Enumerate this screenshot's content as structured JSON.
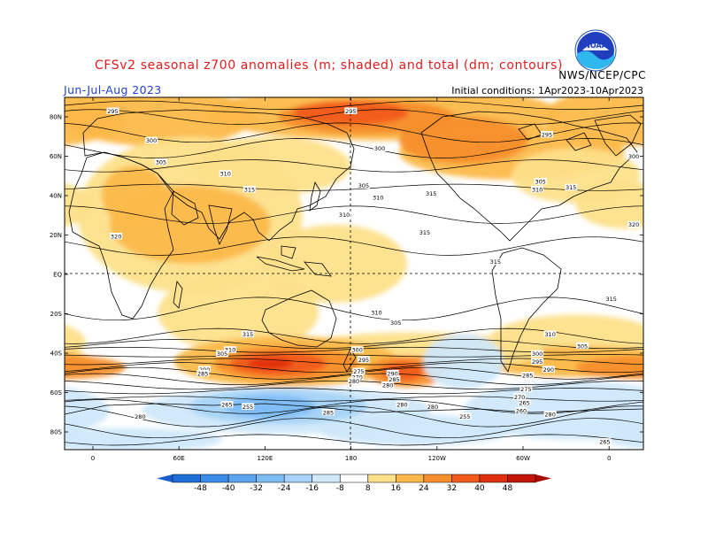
{
  "header": {
    "title": "CFSv2 seasonal z700 anomalies (m; shaded) and total (dm; contours)",
    "period": "Jun-Jul-Aug 2023",
    "init": "Initial conditions: 1Apr2023-10Apr2023",
    "source": "NWS/NCEP/CPC",
    "logo_text": "NOAA"
  },
  "map": {
    "lat_labels": [
      "80N",
      "60N",
      "40N",
      "20N",
      "EQ",
      "20S",
      "40S",
      "60S",
      "80S"
    ],
    "lon_labels": [
      "0",
      "60E",
      "120E",
      "180",
      "120W",
      "60W",
      "0"
    ],
    "contour_labels": [
      {
        "text": "295",
        "lon": 12,
        "lat": 83
      },
      {
        "text": "295",
        "lon": 160,
        "lat": 83
      },
      {
        "text": "295",
        "lon": 282,
        "lat": 71
      },
      {
        "text": "300",
        "lon": 36,
        "lat": 68
      },
      {
        "text": "300",
        "lon": 178,
        "lat": 64
      },
      {
        "text": "300",
        "lon": 336,
        "lat": 60
      },
      {
        "text": "305",
        "lon": 42,
        "lat": 57
      },
      {
        "text": "305",
        "lon": 168,
        "lat": 45
      },
      {
        "text": "305",
        "lon": 278,
        "lat": 47
      },
      {
        "text": "310",
        "lon": 82,
        "lat": 51
      },
      {
        "text": "310",
        "lon": 177,
        "lat": 39
      },
      {
        "text": "310",
        "lon": 276,
        "lat": 43
      },
      {
        "text": "315",
        "lon": 97,
        "lat": 43
      },
      {
        "text": "315",
        "lon": 210,
        "lat": 41
      },
      {
        "text": "315",
        "lon": 297,
        "lat": 44
      },
      {
        "text": "310",
        "lon": 156,
        "lat": 30
      },
      {
        "text": "320",
        "lon": 14,
        "lat": 19
      },
      {
        "text": "315",
        "lon": 206,
        "lat": 21
      },
      {
        "text": "320",
        "lon": 336,
        "lat": 25
      },
      {
        "text": "315",
        "lon": 250,
        "lat": 6
      },
      {
        "text": "310",
        "lon": 176,
        "lat": -20
      },
      {
        "text": "305",
        "lon": 188,
        "lat": -25
      },
      {
        "text": "315",
        "lon": 96,
        "lat": -31
      },
      {
        "text": "315",
        "lon": 322,
        "lat": -13
      },
      {
        "text": "310",
        "lon": 85,
        "lat": -39
      },
      {
        "text": "310",
        "lon": 284,
        "lat": -31
      },
      {
        "text": "305",
        "lon": 80,
        "lat": -41
      },
      {
        "text": "305",
        "lon": 304,
        "lat": -37
      },
      {
        "text": "300",
        "lon": 164,
        "lat": -39
      },
      {
        "text": "300",
        "lon": 276,
        "lat": -41
      },
      {
        "text": "295",
        "lon": 168,
        "lat": -44
      },
      {
        "text": "295",
        "lon": 276,
        "lat": -45
      },
      {
        "text": "290",
        "lon": 69,
        "lat": -49
      },
      {
        "text": "290",
        "lon": 186,
        "lat": -51
      },
      {
        "text": "290",
        "lon": 283,
        "lat": -49
      },
      {
        "text": "285",
        "lon": 68,
        "lat": -51
      },
      {
        "text": "285",
        "lon": 187,
        "lat": -54
      },
      {
        "text": "285",
        "lon": 270,
        "lat": -52
      },
      {
        "text": "275",
        "lon": 165,
        "lat": -50
      },
      {
        "text": "270",
        "lon": 164,
        "lat": -53
      },
      {
        "text": "280",
        "lon": 162,
        "lat": -55
      },
      {
        "text": "280",
        "lon": 183,
        "lat": -57
      },
      {
        "text": "275",
        "lon": 269,
        "lat": -59
      },
      {
        "text": "270",
        "lon": 265,
        "lat": -63
      },
      {
        "text": "265",
        "lon": 268,
        "lat": -66
      },
      {
        "text": "260",
        "lon": 266,
        "lat": -70
      },
      {
        "text": "280",
        "lon": 284,
        "lat": -72
      },
      {
        "text": "265",
        "lon": 83,
        "lat": -67
      },
      {
        "text": "255",
        "lon": 96,
        "lat": -68
      },
      {
        "text": "285",
        "lon": 146,
        "lat": -71
      },
      {
        "text": "280",
        "lon": 211,
        "lat": -68
      },
      {
        "text": "255",
        "lon": 231,
        "lat": -73
      },
      {
        "text": "280",
        "lon": 192,
        "lat": -67
      },
      {
        "text": "280",
        "lon": 29,
        "lat": -73
      },
      {
        "text": "265",
        "lon": 318,
        "lat": -86
      }
    ],
    "anomaly_blobs": [
      {
        "lon": 180,
        "lat": 82,
        "rx": 110,
        "ry": 14,
        "value": 16
      },
      {
        "lon": 170,
        "lat": 80,
        "rx": 55,
        "ry": 9,
        "value": 24
      },
      {
        "lon": 160,
        "lat": 82,
        "rx": 36,
        "ry": 6,
        "value": 32
      },
      {
        "lon": 40,
        "lat": 80,
        "rx": 60,
        "ry": 15,
        "value": 16
      },
      {
        "lon": 330,
        "lat": 80,
        "rx": 50,
        "ry": 15,
        "value": 16
      },
      {
        "lon": 260,
        "lat": 62,
        "rx": 70,
        "ry": 14,
        "value": 16
      },
      {
        "lon": 300,
        "lat": 50,
        "rx": 40,
        "ry": 14,
        "value": 8
      },
      {
        "lon": 230,
        "lat": 68,
        "rx": 40,
        "ry": 12,
        "value": 24
      },
      {
        "lon": 60,
        "lat": 30,
        "rx": 70,
        "ry": 40,
        "value": 8
      },
      {
        "lon": 60,
        "lat": 25,
        "rx": 50,
        "ry": 20,
        "value": 16
      },
      {
        "lon": 25,
        "lat": 40,
        "rx": 20,
        "ry": 15,
        "value": 16
      },
      {
        "lon": 110,
        "lat": 55,
        "rx": 50,
        "ry": 15,
        "value": 8
      },
      {
        "lon": 150,
        "lat": 5,
        "rx": 45,
        "ry": 20,
        "value": 8
      },
      {
        "lon": 90,
        "lat": -20,
        "rx": 50,
        "ry": 20,
        "value": 8
      },
      {
        "lon": 330,
        "lat": 35,
        "rx": 30,
        "ry": 12,
        "value": 8
      },
      {
        "lon": 300,
        "lat": -35,
        "rx": 55,
        "ry": 14,
        "value": 8
      },
      {
        "lon": 300,
        "lat": -45,
        "rx": 60,
        "ry": 8,
        "value": 16
      },
      {
        "lon": 200,
        "lat": -40,
        "rx": 80,
        "ry": 10,
        "value": 8
      },
      {
        "lon": 120,
        "lat": -45,
        "rx": 70,
        "ry": 13,
        "value": 16
      },
      {
        "lon": 120,
        "lat": -46,
        "rx": 45,
        "ry": 9,
        "value": 24
      },
      {
        "lon": 115,
        "lat": -46,
        "rx": 30,
        "ry": 6,
        "value": 32
      },
      {
        "lon": 110,
        "lat": -46,
        "rx": 14,
        "ry": 3,
        "value": 40
      },
      {
        "lon": 195,
        "lat": -50,
        "rx": 25,
        "ry": 8,
        "value": 24
      },
      {
        "lon": 192,
        "lat": -50,
        "rx": 13,
        "ry": 5,
        "value": 32
      },
      {
        "lon": 340,
        "lat": -48,
        "rx": 40,
        "ry": 6,
        "value": 24
      },
      {
        "lon": 230,
        "lat": -45,
        "rx": 25,
        "ry": 14,
        "value": -8
      },
      {
        "lon": 120,
        "lat": -70,
        "rx": 90,
        "ry": 12,
        "value": -8
      },
      {
        "lon": 115,
        "lat": -68,
        "rx": 55,
        "ry": 9,
        "value": -16
      },
      {
        "lon": 110,
        "lat": -68,
        "rx": 28,
        "ry": 6,
        "value": -24
      },
      {
        "lon": 300,
        "lat": -70,
        "rx": 70,
        "ry": 15,
        "value": -8
      },
      {
        "lon": 20,
        "lat": -85,
        "rx": 60,
        "ry": 6,
        "value": -8
      },
      {
        "lon": 200,
        "lat": -80,
        "rx": 60,
        "ry": 8,
        "value": -8
      }
    ]
  },
  "colorbar": {
    "ticks": [
      "-48",
      "-40",
      "-32",
      "-24",
      "-16",
      "-8",
      "8",
      "16",
      "24",
      "32",
      "40",
      "48"
    ],
    "colors": [
      "#1e6fd9",
      "#3b8ce8",
      "#5aa4f0",
      "#7dbcf5",
      "#a6d3f7",
      "#cfe8fa",
      "#ffffff",
      "#fde08a",
      "#fcb94a",
      "#f78f2c",
      "#f25b1b",
      "#e0300f",
      "#c4140a"
    ]
  }
}
